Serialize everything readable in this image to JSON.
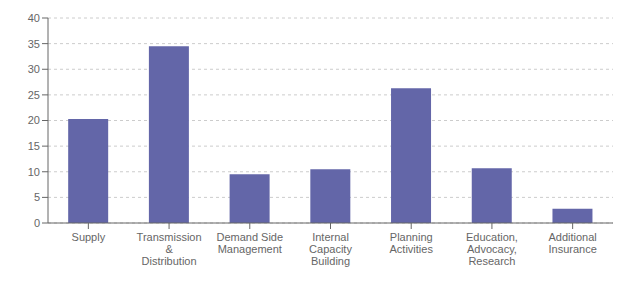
{
  "chart_data": {
    "type": "bar",
    "categories": [
      "Supply",
      "Transmission\n&\nDistribution",
      "Demand Side\nManagement",
      "Internal\nCapacity\nBuilding",
      "Planning\nActivities",
      "Education,\nAdvocacy,\nResearch",
      "Additional\nInsurance"
    ],
    "values": [
      20.3,
      34.5,
      9.5,
      10.5,
      26.3,
      10.7,
      2.8
    ],
    "color": "#6366a8",
    "ylim": [
      0,
      40
    ],
    "yticks": [
      0,
      5,
      10,
      15,
      20,
      25,
      30,
      35,
      40
    ],
    "grid": true
  }
}
